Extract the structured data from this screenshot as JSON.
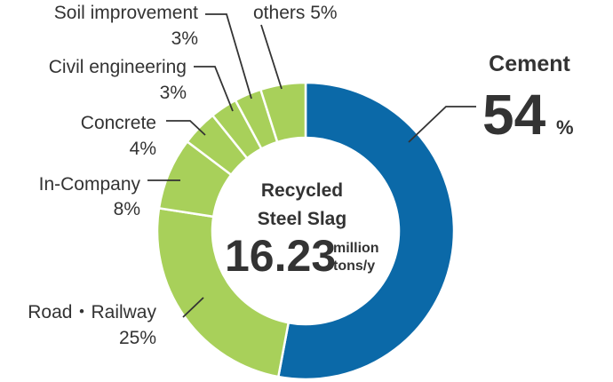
{
  "chart_data": {
    "type": "pie",
    "style": "donut",
    "categories": [
      "Cement",
      "Road・Railway",
      "In-Company",
      "Concrete",
      "Civil engineering",
      "Soil improvement",
      "others"
    ],
    "values": [
      54,
      25,
      8,
      4,
      3,
      3,
      5
    ],
    "value_labels": [
      "54",
      "25%",
      "8%",
      "4%",
      "3%",
      "3%",
      "5%"
    ],
    "percent_sign": "%",
    "colors": [
      "#0b69a8",
      "#a8d05a",
      "#a8d05a",
      "#a8d05a",
      "#a8d05a",
      "#a8d05a",
      "#a8d05a"
    ],
    "center": {
      "title_line1": "Recycled",
      "title_line2": "Steel Slag",
      "value": "16.23",
      "unit_line1": "million",
      "unit_line2": "tons/y"
    }
  }
}
